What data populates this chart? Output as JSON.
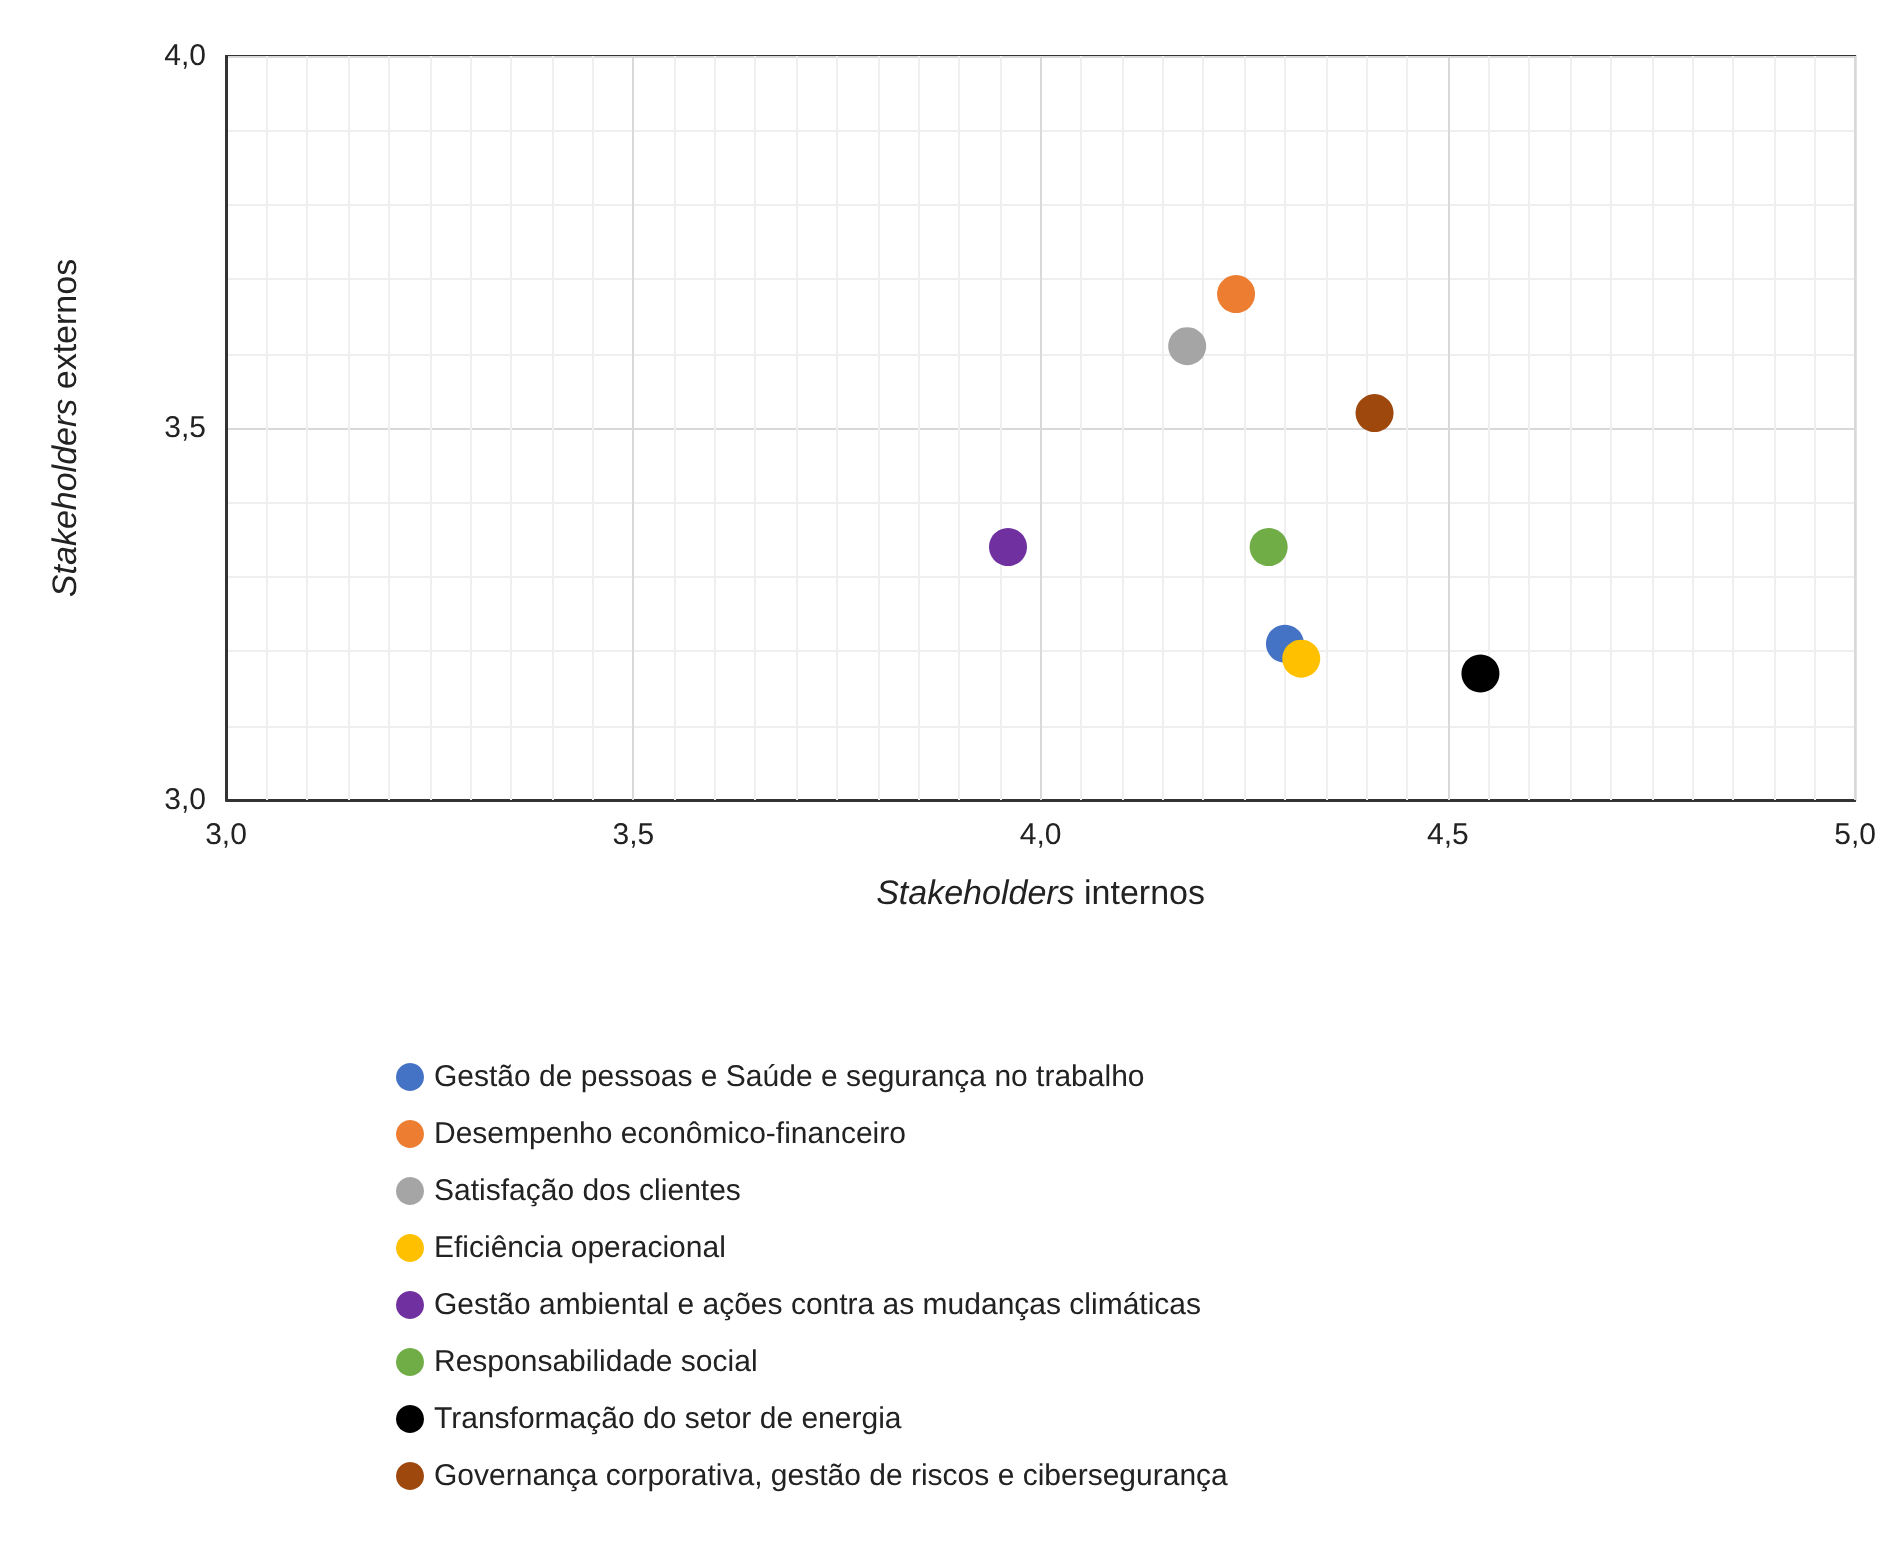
{
  "chart_data": {
    "type": "scatter",
    "xlabel": "Stakeholders internos",
    "ylabel": "Stakeholders externos",
    "xlim": [
      3.0,
      5.0
    ],
    "ylim": [
      3.0,
      4.0
    ],
    "xticks": [
      {
        "value": 3.0,
        "label": "3,0"
      },
      {
        "value": 3.5,
        "label": "3,5"
      },
      {
        "value": 4.0,
        "label": "4,0"
      },
      {
        "value": 4.5,
        "label": "4,5"
      },
      {
        "value": 5.0,
        "label": "5,0"
      }
    ],
    "yticks": [
      {
        "value": 3.0,
        "label": "3,0"
      },
      {
        "value": 3.5,
        "label": "3,5"
      },
      {
        "value": 4.0,
        "label": "4,0"
      }
    ],
    "grid": true,
    "legend": "bottom",
    "marker": "circle",
    "series": [
      {
        "name": "Gestão de pessoas e Saúde e segurança no trabalho",
        "color": "#4472c4",
        "x": [
          4.3
        ],
        "values": [
          3.21
        ]
      },
      {
        "name": "Desempenho econômico-financeiro",
        "color": "#ed7d31",
        "x": [
          4.24
        ],
        "values": [
          3.68
        ]
      },
      {
        "name": "Satisfação dos clientes",
        "color": "#a5a5a5",
        "x": [
          4.18
        ],
        "values": [
          3.61
        ]
      },
      {
        "name": "Eficiência operacional",
        "color": "#ffc000",
        "x": [
          4.32
        ],
        "values": [
          3.19
        ]
      },
      {
        "name": "Gestão ambiental e ações contra as mudanças climáticas",
        "color": "#7030a0",
        "x": [
          3.96
        ],
        "values": [
          3.34
        ]
      },
      {
        "name": "Responsabilidade social",
        "color": "#70ad47",
        "x": [
          4.28
        ],
        "values": [
          3.34
        ]
      },
      {
        "name": "Transformação do setor de energia",
        "color": "#000000",
        "x": [
          4.54
        ],
        "values": [
          3.17
        ]
      },
      {
        "name": "Governança corporativa, gestão de riscos e cibersegurança",
        "color": "#9e480e",
        "x": [
          4.41
        ],
        "values": [
          3.52
        ]
      }
    ]
  }
}
